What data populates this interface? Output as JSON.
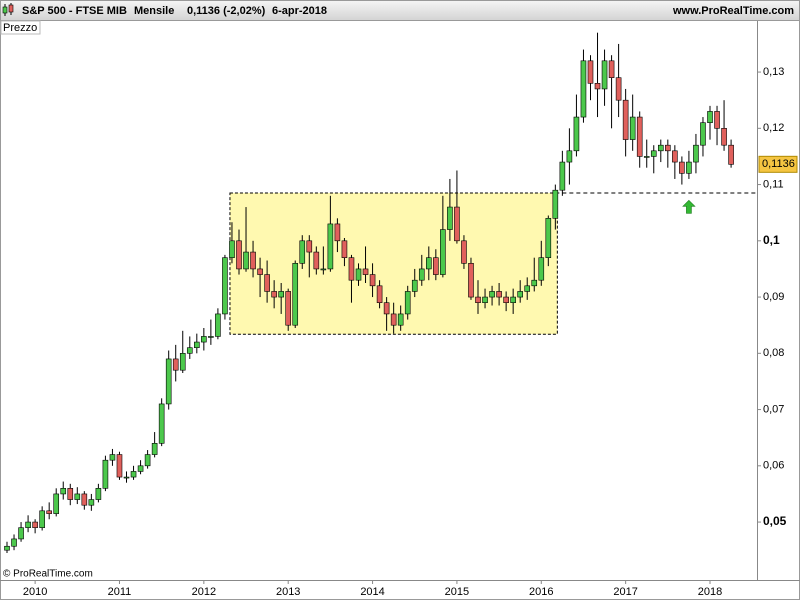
{
  "chart_data": {
    "type": "candlestick",
    "title": "S&P 500 - FTSE MIB",
    "period": "Mensile",
    "last_quote": "0,1136 (-2,02%)",
    "date": "6-apr-2018",
    "site": "www.ProRealTime.com",
    "panel_label": "Prezzo",
    "copyright": "© ProRealTime.com",
    "categories": [
      null,
      null,
      null,
      null,
      "2010",
      null,
      null,
      null,
      null,
      null,
      null,
      null,
      null,
      null,
      null,
      null,
      "2011",
      null,
      null,
      null,
      null,
      null,
      null,
      null,
      null,
      null,
      null,
      null,
      "2012",
      null,
      null,
      null,
      null,
      null,
      null,
      null,
      null,
      null,
      null,
      null,
      "2013",
      null,
      null,
      null,
      null,
      null,
      null,
      null,
      null,
      null,
      null,
      null,
      "2014",
      null,
      null,
      null,
      null,
      null,
      null,
      null,
      null,
      null,
      null,
      null,
      "2015",
      null,
      null,
      null,
      null,
      null,
      null,
      null,
      null,
      null,
      null,
      null,
      "2016",
      null,
      null,
      null,
      null,
      null,
      null,
      null,
      null,
      null,
      null,
      null,
      "2017",
      null,
      null,
      null,
      null,
      null,
      null,
      null,
      null,
      null,
      null,
      null,
      "2018",
      null,
      null,
      null
    ],
    "open": [
      0.045,
      0.0457,
      0.047,
      0.049,
      0.05,
      0.049,
      0.052,
      0.0515,
      0.055,
      0.056,
      0.054,
      0.055,
      0.053,
      0.054,
      0.056,
      0.061,
      0.062,
      0.058,
      0.058,
      0.059,
      0.06,
      0.062,
      0.064,
      0.071,
      0.079,
      0.077,
      0.08,
      0.081,
      0.082,
      0.083,
      0.083,
      0.087,
      0.097,
      0.1,
      0.095,
      0.098,
      0.095,
      0.094,
      0.091,
      0.09,
      0.091,
      0.085,
      0.096,
      0.1,
      0.098,
      0.095,
      0.095,
      0.103,
      0.1,
      0.097,
      0.093,
      0.095,
      0.094,
      0.092,
      0.089,
      0.087,
      0.085,
      0.087,
      0.091,
      0.093,
      0.095,
      0.097,
      0.094,
      0.102,
      0.106,
      0.1,
      0.096,
      0.09,
      0.089,
      0.09,
      0.091,
      0.09,
      0.089,
      0.09,
      0.091,
      0.092,
      0.093,
      0.097,
      0.104,
      0.109,
      0.114,
      0.116,
      0.122,
      0.132,
      0.128,
      0.127,
      0.132,
      0.129,
      0.125,
      0.118,
      0.122,
      0.115,
      0.115,
      0.116,
      0.117,
      0.116,
      0.114,
      0.112,
      0.114,
      0.117,
      0.121,
      0.123,
      0.12,
      0.117
    ],
    "high": [
      0.0465,
      0.0478,
      0.05,
      0.0512,
      0.0505,
      0.0528,
      0.0535,
      0.056,
      0.0572,
      0.0568,
      0.0562,
      0.0555,
      0.055,
      0.0568,
      0.0618,
      0.063,
      0.0625,
      0.059,
      0.06,
      0.061,
      0.0628,
      0.066,
      0.072,
      0.0805,
      0.0815,
      0.084,
      0.083,
      0.0835,
      0.0845,
      0.086,
      0.088,
      0.0975,
      0.1033,
      0.102,
      0.106,
      0.1,
      0.097,
      0.0965,
      0.093,
      0.0925,
      0.0915,
      0.0965,
      0.101,
      0.101,
      0.099,
      0.099,
      0.108,
      0.104,
      0.1005,
      0.0975,
      0.096,
      0.099,
      0.096,
      0.093,
      0.09,
      0.089,
      0.0885,
      0.092,
      0.095,
      0.0975,
      0.099,
      0.0985,
      0.108,
      0.111,
      0.1125,
      0.101,
      0.097,
      0.093,
      0.0915,
      0.092,
      0.0925,
      0.091,
      0.0915,
      0.093,
      0.0935,
      0.097,
      0.1,
      0.1045,
      0.11,
      0.116,
      0.12,
      0.126,
      0.134,
      0.133,
      0.137,
      0.134,
      0.133,
      0.135,
      0.127,
      0.126,
      0.123,
      0.118,
      0.117,
      0.118,
      0.118,
      0.117,
      0.115,
      0.116,
      0.119,
      0.122,
      0.124,
      0.124,
      0.125,
      0.118
    ],
    "low": [
      0.0445,
      0.045,
      0.0465,
      0.0482,
      0.048,
      0.0485,
      0.0505,
      0.051,
      0.054,
      0.053,
      0.0532,
      0.0522,
      0.052,
      0.0535,
      0.0555,
      0.06,
      0.0575,
      0.057,
      0.0575,
      0.0585,
      0.0595,
      0.0615,
      0.0635,
      0.07,
      0.075,
      0.0765,
      0.079,
      0.08,
      0.0805,
      0.0815,
      0.0825,
      0.086,
      0.096,
      0.094,
      0.0945,
      0.0935,
      0.09,
      0.089,
      0.088,
      0.087,
      0.084,
      0.0845,
      0.095,
      0.0935,
      0.094,
      0.094,
      0.0945,
      0.098,
      0.0955,
      0.089,
      0.092,
      0.0925,
      0.09,
      0.088,
      0.084,
      0.0835,
      0.084,
      0.086,
      0.09,
      0.092,
      0.093,
      0.093,
      0.0935,
      0.1,
      0.0995,
      0.095,
      0.0895,
      0.087,
      0.088,
      0.0885,
      0.0885,
      0.0875,
      0.087,
      0.089,
      0.0895,
      0.091,
      0.092,
      0.0955,
      0.102,
      0.108,
      0.11,
      0.115,
      0.121,
      0.125,
      0.122,
      0.124,
      0.12,
      0.122,
      0.115,
      0.116,
      0.113,
      0.113,
      0.112,
      0.114,
      0.113,
      0.111,
      0.11,
      0.111,
      0.112,
      0.115,
      0.118,
      0.117,
      0.116,
      0.113
    ],
    "close": [
      0.0457,
      0.047,
      0.049,
      0.05,
      0.049,
      0.052,
      0.0515,
      0.055,
      0.056,
      0.054,
      0.055,
      0.053,
      0.054,
      0.056,
      0.061,
      0.062,
      0.058,
      0.058,
      0.059,
      0.06,
      0.062,
      0.064,
      0.071,
      0.079,
      0.077,
      0.08,
      0.081,
      0.082,
      0.083,
      0.083,
      0.087,
      0.097,
      0.1,
      0.095,
      0.098,
      0.095,
      0.094,
      0.091,
      0.09,
      0.091,
      0.085,
      0.096,
      0.1,
      0.098,
      0.095,
      0.095,
      0.103,
      0.1,
      0.097,
      0.093,
      0.095,
      0.094,
      0.092,
      0.089,
      0.087,
      0.085,
      0.087,
      0.091,
      0.093,
      0.095,
      0.097,
      0.094,
      0.102,
      0.106,
      0.1,
      0.096,
      0.09,
      0.089,
      0.09,
      0.091,
      0.09,
      0.089,
      0.09,
      0.091,
      0.092,
      0.093,
      0.097,
      0.104,
      0.109,
      0.114,
      0.116,
      0.122,
      0.132,
      0.128,
      0.127,
      0.132,
      0.129,
      0.125,
      0.118,
      0.122,
      0.115,
      0.115,
      0.116,
      0.117,
      0.116,
      0.114,
      0.112,
      0.114,
      0.117,
      0.121,
      0.123,
      0.12,
      0.117,
      0.1136
    ],
    "up_color": "#4cc84c",
    "down_color": "#e0605c",
    "ylim": [
      0.0397,
      0.1389
    ],
    "yticks": [
      {
        "value": 0.05,
        "label": "0,05",
        "bold": true
      },
      {
        "value": 0.06,
        "label": "0,06"
      },
      {
        "value": 0.07,
        "label": "0,07"
      },
      {
        "value": 0.08,
        "label": "0,08"
      },
      {
        "value": 0.09,
        "label": "0,09"
      },
      {
        "value": 0.1,
        "label": "0,1",
        "bold": true
      },
      {
        "value": 0.11,
        "label": "0,11"
      },
      {
        "value": 0.12,
        "label": "0,12"
      },
      {
        "value": 0.13,
        "label": "0,13"
      }
    ],
    "last_price": {
      "value": 0.1136,
      "label": "0,1136",
      "color": "#f5c542"
    },
    "highlight": {
      "from": 32,
      "to": 78,
      "low": 0.0834,
      "high": 0.1085,
      "color": "#fff9b0"
    },
    "support": {
      "from": 78,
      "value": 0.1085
    },
    "arrow": {
      "index": 97,
      "value": 0.1072,
      "color": "#33b833"
    }
  }
}
